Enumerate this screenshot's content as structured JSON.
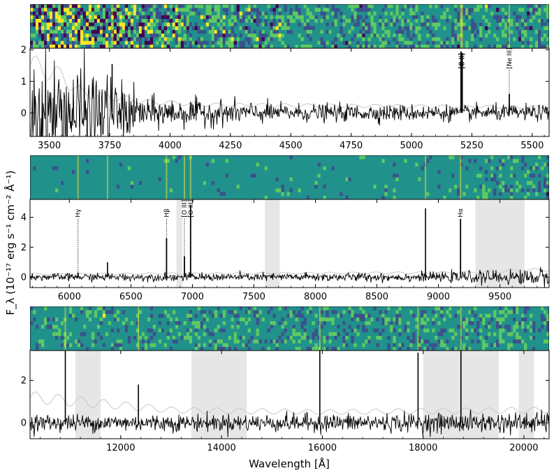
{
  "figure": {
    "ylabel": "F_λ (10⁻¹⁷ erg s⁻¹ cm⁻² Å⁻¹)",
    "xlabel": "Wavelength [Å]"
  },
  "colors": {
    "spectrum": "#000000",
    "error": "#c8c8c8",
    "masked_band": "#e6e6e6",
    "image_palette": [
      "#440154",
      "#3b528b",
      "#21918c",
      "#5ec962",
      "#fde725"
    ]
  },
  "chart_data": [
    {
      "type": "line",
      "panel": "optical-blue",
      "xlim": [
        3420,
        5570
      ],
      "ylim": [
        -0.75,
        2.05
      ],
      "xticks": [
        3500,
        3750,
        4000,
        4250,
        4500,
        4750,
        5000,
        5250,
        5500
      ],
      "yticks": [
        0,
        1,
        2
      ],
      "continuum": 0.0,
      "noise_profile": [
        [
          3420,
          0.9
        ],
        [
          3700,
          0.7
        ],
        [
          3900,
          0.25
        ],
        [
          4500,
          0.14
        ],
        [
          5570,
          0.12
        ]
      ],
      "masked_regions": [],
      "emission_lines": [
        {
          "label": "[O II]",
          "x": 5205,
          "peak": 1.95,
          "label_y": 1.4
        },
        {
          "label": "[O II]",
          "x": 5210,
          "peak": 1.9,
          "label_y": 1.4
        },
        {
          "label": "[Ne III]",
          "x": 5405,
          "peak": 0.6,
          "label_y": 1.4
        }
      ],
      "spikes": [
        {
          "x": 3760,
          "peak": 1.55
        }
      ],
      "error_curve": [
        [
          3420,
          1.5
        ],
        [
          3480,
          1.4
        ],
        [
          3560,
          1.1
        ],
        [
          3640,
          0.6
        ],
        [
          3760,
          0.5
        ],
        [
          3900,
          0.35
        ],
        [
          4200,
          0.25
        ],
        [
          5570,
          0.18
        ]
      ]
    },
    {
      "type": "line",
      "panel": "optical-red",
      "xlim": [
        5680,
        9900
      ],
      "ylim": [
        -0.7,
        5.2
      ],
      "xticks": [
        6000,
        6500,
        7000,
        7500,
        8000,
        8500,
        9000,
        9500
      ],
      "yticks": [
        0,
        2,
        4
      ],
      "continuum": 0.0,
      "noise_profile": [
        [
          5680,
          0.12
        ],
        [
          9000,
          0.15
        ],
        [
          9900,
          0.3
        ]
      ],
      "masked_regions": [
        [
          6870,
          6920
        ],
        [
          7590,
          7710
        ],
        [
          9300,
          9700
        ]
      ],
      "emission_lines": [
        {
          "label": "Hγ",
          "x": 6070,
          "peak": 0.3,
          "label_y": 4.0
        },
        {
          "label": "Hβ",
          "x": 6790,
          "peak": 2.6,
          "label_y": 4.0
        },
        {
          "label": "[O III]",
          "x": 6935,
          "peak": 1.4,
          "label_y": 4.0
        },
        {
          "label": "[O III]",
          "x": 6985,
          "peak": 4.8,
          "label_y": 4.0
        },
        {
          "label": "Hα",
          "x": 9180,
          "peak": 3.9,
          "label_y": 4.0
        }
      ],
      "spikes": [
        {
          "x": 8895,
          "peak": 4.6
        },
        {
          "x": 6310,
          "peak": 1.0
        }
      ],
      "error_curve": [
        [
          5680,
          0.2
        ],
        [
          9200,
          0.3
        ],
        [
          9900,
          0.5
        ]
      ]
    },
    {
      "type": "line",
      "panel": "near-infrared",
      "xlim": [
        10200,
        20500
      ],
      "ylim": [
        -0.75,
        3.4
      ],
      "xticks": [
        12000,
        14000,
        16000,
        18000,
        20000
      ],
      "yticks": [
        0,
        2
      ],
      "continuum": 0.0,
      "noise_profile": [
        [
          10200,
          0.2
        ],
        [
          14000,
          0.2
        ],
        [
          18000,
          0.22
        ],
        [
          20500,
          0.25
        ]
      ],
      "masked_regions": [
        [
          11100,
          11600
        ],
        [
          13400,
          14500
        ],
        [
          18000,
          19500
        ],
        [
          19900,
          20200
        ]
      ],
      "emission_lines": [],
      "spikes": [
        {
          "x": 10900,
          "peak": 3.4
        },
        {
          "x": 15950,
          "peak": 3.4
        },
        {
          "x": 17900,
          "peak": 3.3
        },
        {
          "x": 18750,
          "peak": 3.4
        },
        {
          "x": 12350,
          "peak": 1.8
        }
      ],
      "error_curve": [
        [
          10200,
          1.2
        ],
        [
          13000,
          0.6
        ],
        [
          16000,
          0.5
        ],
        [
          20500,
          0.6
        ]
      ]
    }
  ]
}
